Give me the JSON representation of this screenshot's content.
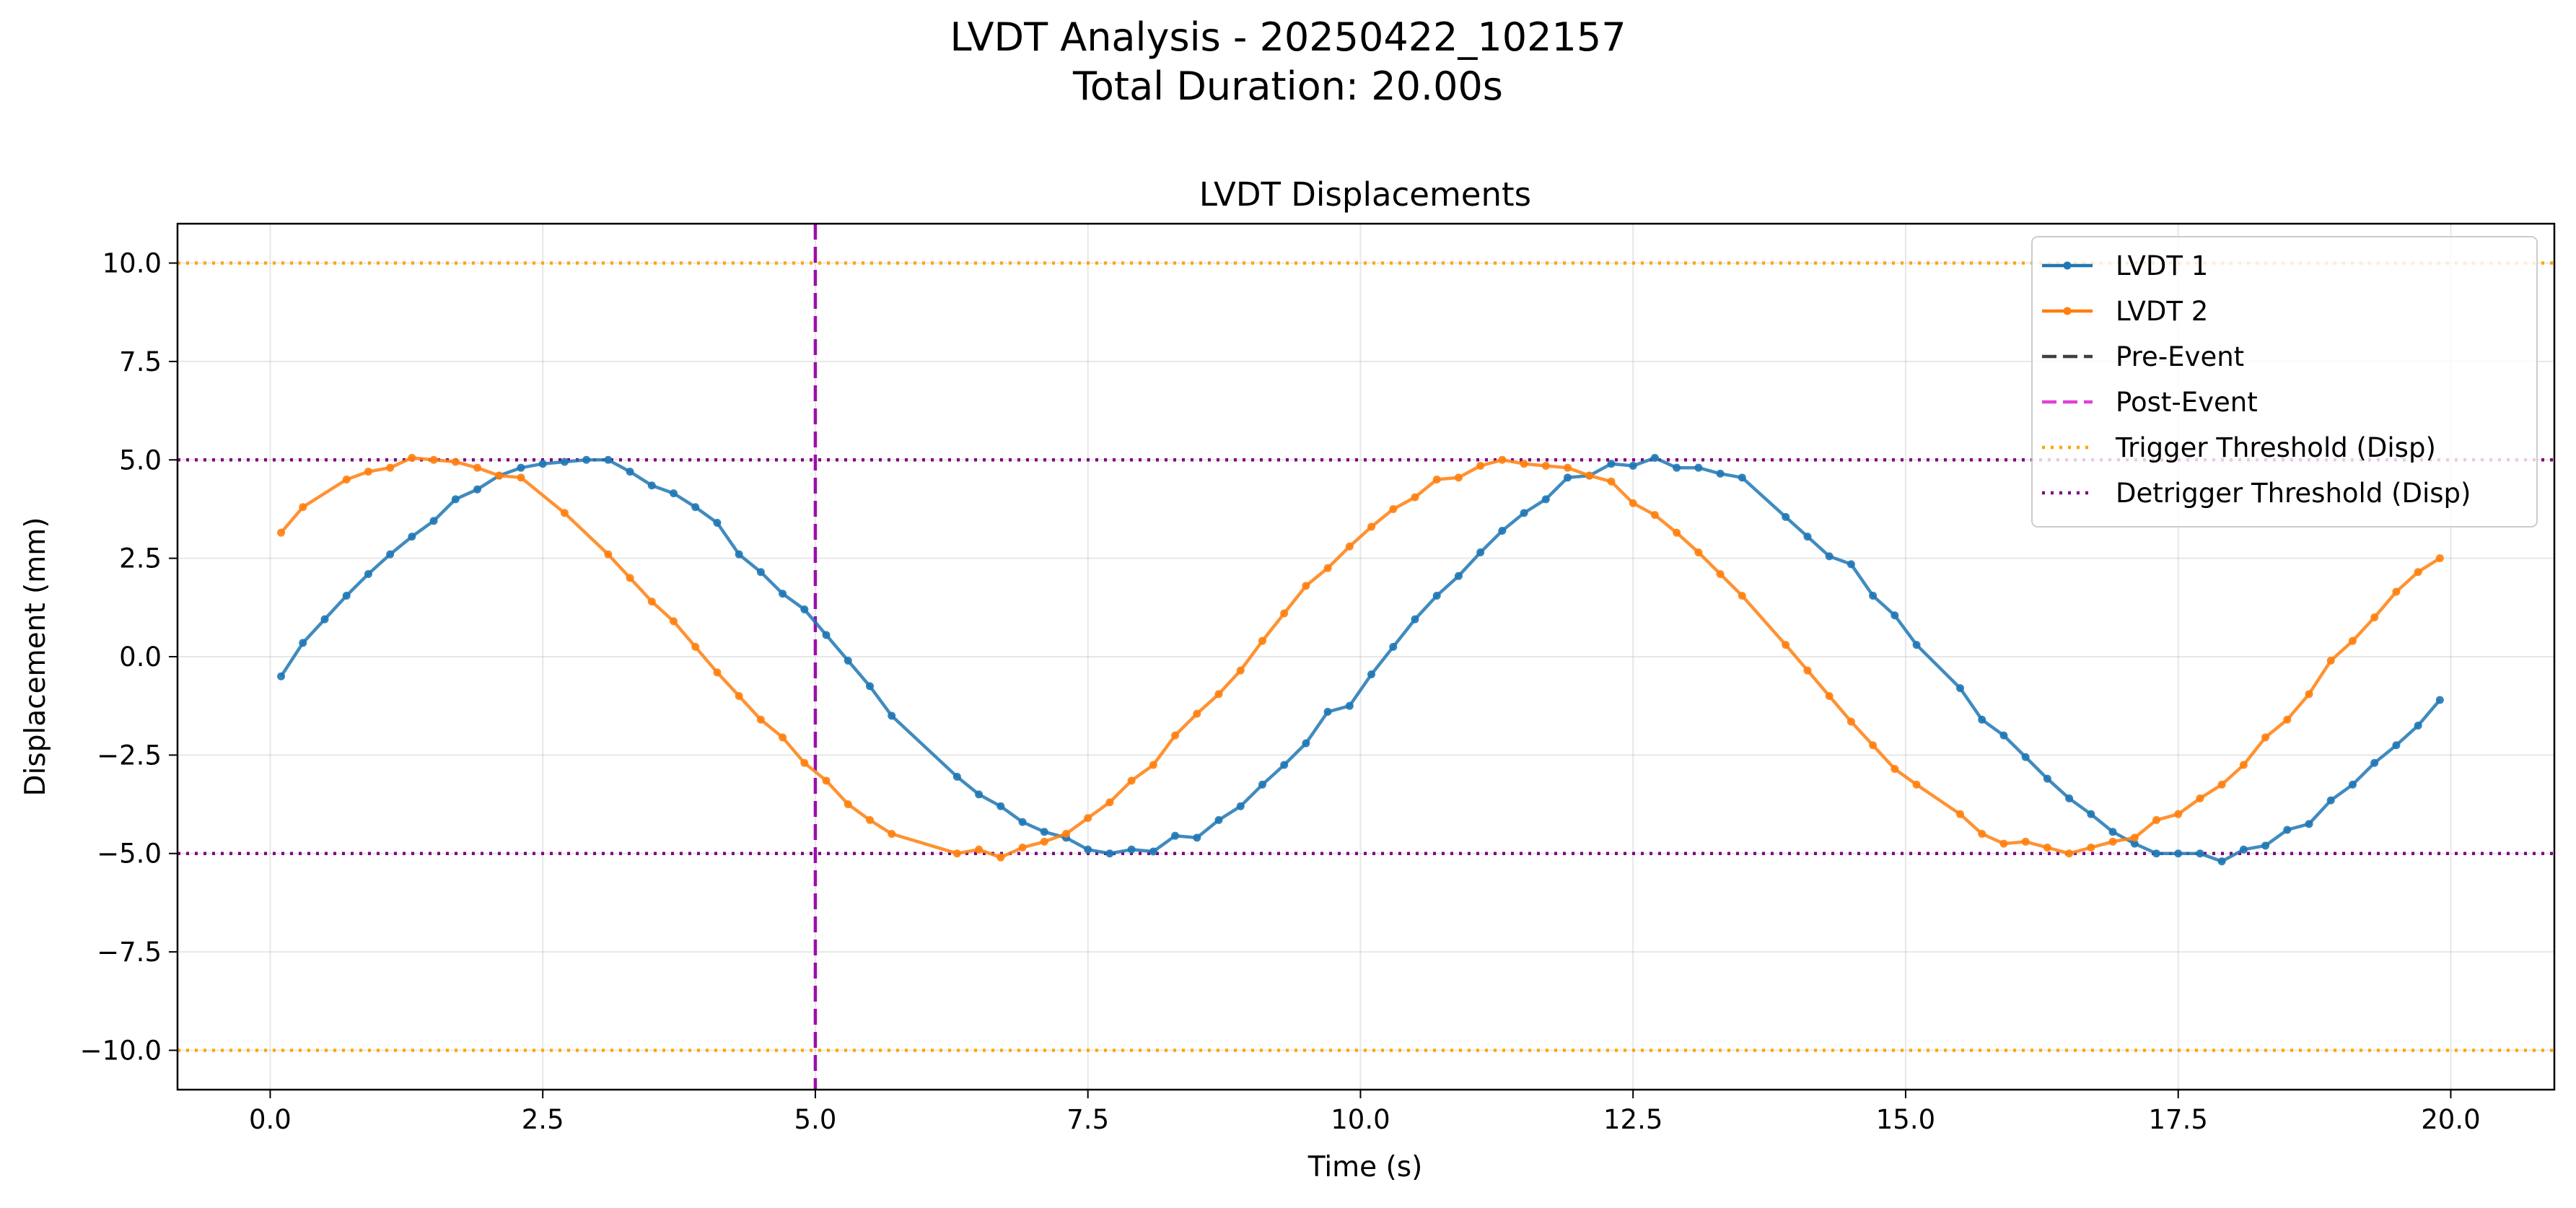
{
  "figure": {
    "suptitle_line1": "LVDT Analysis - 20250422_102157",
    "suptitle_line2": "Total Duration: 20.00s"
  },
  "chart_data": {
    "type": "line",
    "title": "LVDT Displacements",
    "xlabel": "Time (s)",
    "ylabel": "Displacement (mm)",
    "xlim": [
      -0.85,
      20.95
    ],
    "ylim": [
      -11,
      11
    ],
    "xticks": [
      0.0,
      2.5,
      5.0,
      7.5,
      10.0,
      12.5,
      15.0,
      17.5,
      20.0
    ],
    "xtick_labels": [
      "0.0",
      "2.5",
      "5.0",
      "7.5",
      "10.0",
      "12.5",
      "15.0",
      "17.5",
      "20.0"
    ],
    "yticks": [
      10.0,
      7.5,
      5.0,
      2.5,
      0.0,
      -2.5,
      -5.0,
      -7.5,
      -10.0
    ],
    "ytick_labels": [
      "10.0",
      "7.5",
      "5.0",
      "2.5",
      "0.0",
      "−2.5",
      "−5.0",
      "−7.5",
      "−10.0"
    ],
    "grid": true,
    "legend_position": "upper right",
    "series": [
      {
        "name": "LVDT 1",
        "color": "#1f77b4",
        "style": "solid-markers",
        "x": [
          0.1,
          0.3,
          0.5,
          0.7,
          0.9,
          1.1,
          1.3,
          1.5,
          1.7,
          1.9,
          2.1,
          2.3,
          2.5,
          2.7,
          2.9,
          3.1,
          3.3,
          3.5,
          3.7,
          3.9,
          4.1,
          4.3,
          4.5,
          4.7,
          4.9,
          5.1,
          5.3,
          5.5,
          5.7,
          6.3,
          6.5,
          6.7,
          6.9,
          7.1,
          7.3,
          7.5,
          7.7,
          7.9,
          8.1,
          8.3,
          8.5,
          8.7,
          8.9,
          9.1,
          9.3,
          9.5,
          9.7,
          9.9,
          10.1,
          10.3,
          10.5,
          10.7,
          10.9,
          11.1,
          11.3,
          11.5,
          11.7,
          11.9,
          12.1,
          12.3,
          12.5,
          12.7,
          12.9,
          13.1,
          13.3,
          13.5,
          13.9,
          14.1,
          14.3,
          14.5,
          14.7,
          14.9,
          15.1,
          15.5,
          15.7,
          15.9,
          16.1,
          16.3,
          16.5,
          16.7,
          16.9,
          17.1,
          17.3,
          17.5,
          17.7,
          17.9,
          18.1,
          18.3,
          18.5,
          18.7,
          18.9,
          19.1,
          19.3,
          19.5,
          19.7,
          19.9
        ],
        "y": [
          -0.5,
          0.35,
          0.95,
          1.55,
          2.1,
          2.6,
          3.05,
          3.45,
          4.0,
          4.25,
          4.6,
          4.8,
          4.9,
          4.95,
          5.0,
          5.0,
          4.7,
          4.35,
          4.15,
          3.8,
          3.4,
          2.6,
          2.15,
          1.6,
          1.2,
          0.55,
          -0.1,
          -0.75,
          -1.5,
          -3.05,
          -3.5,
          -3.8,
          -4.2,
          -4.45,
          -4.6,
          -4.9,
          -5.0,
          -4.9,
          -4.95,
          -4.55,
          -4.6,
          -4.15,
          -3.8,
          -3.25,
          -2.75,
          -2.2,
          -1.4,
          -1.25,
          -0.45,
          0.25,
          0.95,
          1.55,
          2.05,
          2.65,
          3.2,
          3.65,
          4.0,
          4.55,
          4.6,
          4.9,
          4.85,
          5.05,
          4.8,
          4.8,
          4.65,
          4.55,
          3.55,
          3.05,
          2.55,
          2.35,
          1.55,
          1.05,
          0.3,
          -0.8,
          -1.6,
          -2.0,
          -2.55,
          -3.1,
          -3.6,
          -4.0,
          -4.45,
          -4.75,
          -5.0,
          -5.0,
          -5.0,
          -5.2,
          -4.9,
          -4.8,
          -4.4,
          -4.25,
          -3.65,
          -3.25,
          -2.7,
          -2.25,
          -1.75,
          -1.1
        ]
      },
      {
        "name": "LVDT 2",
        "color": "#ff7f0e",
        "style": "solid-markers",
        "x": [
          0.1,
          0.3,
          0.7,
          0.9,
          1.1,
          1.3,
          1.5,
          1.7,
          1.9,
          2.1,
          2.3,
          2.7,
          3.1,
          3.3,
          3.5,
          3.7,
          3.9,
          4.1,
          4.3,
          4.5,
          4.7,
          4.9,
          5.1,
          5.3,
          5.5,
          5.7,
          6.3,
          6.5,
          6.7,
          6.9,
          7.1,
          7.3,
          7.5,
          7.7,
          7.9,
          8.1,
          8.3,
          8.5,
          8.7,
          8.9,
          9.1,
          9.3,
          9.5,
          9.7,
          9.9,
          10.1,
          10.3,
          10.5,
          10.7,
          10.9,
          11.1,
          11.3,
          11.5,
          11.7,
          11.9,
          12.1,
          12.3,
          12.5,
          12.7,
          12.9,
          13.1,
          13.3,
          13.5,
          13.9,
          14.1,
          14.3,
          14.5,
          14.7,
          14.9,
          15.1,
          15.5,
          15.7,
          15.9,
          16.1,
          16.3,
          16.5,
          16.7,
          16.9,
          17.1,
          17.3,
          17.5,
          17.7,
          17.9,
          18.1,
          18.3,
          18.5,
          18.7,
          18.9,
          19.1,
          19.3,
          19.5,
          19.7,
          19.9
        ],
        "y": [
          3.15,
          3.8,
          4.5,
          4.7,
          4.8,
          5.05,
          5.0,
          4.95,
          4.8,
          4.6,
          4.55,
          3.65,
          2.6,
          2.0,
          1.4,
          0.9,
          0.25,
          -0.4,
          -1.0,
          -1.6,
          -2.05,
          -2.7,
          -3.15,
          -3.75,
          -4.15,
          -4.5,
          -5.0,
          -4.9,
          -5.1,
          -4.85,
          -4.7,
          -4.5,
          -4.1,
          -3.7,
          -3.15,
          -2.75,
          -2.0,
          -1.45,
          -0.95,
          -0.35,
          0.4,
          1.1,
          1.8,
          2.25,
          2.8,
          3.3,
          3.75,
          4.05,
          4.5,
          4.55,
          4.85,
          5.0,
          4.9,
          4.85,
          4.8,
          4.6,
          4.45,
          3.9,
          3.6,
          3.15,
          2.65,
          2.1,
          1.55,
          0.3,
          -0.35,
          -1.0,
          -1.65,
          -2.25,
          -2.85,
          -3.25,
          -4.0,
          -4.5,
          -4.75,
          -4.7,
          -4.85,
          -5.0,
          -4.85,
          -4.7,
          -4.6,
          -4.15,
          -4.0,
          -3.6,
          -3.25,
          -2.75,
          -2.05,
          -1.6,
          -0.95,
          -0.1,
          0.4,
          1.0,
          1.65,
          2.15,
          2.5
        ]
      }
    ],
    "reference_lines": [
      {
        "orientation": "vertical",
        "x": 5.0,
        "color": "#9a0eab",
        "style": "dashed"
      },
      {
        "orientation": "horizontal",
        "y": 10.0,
        "color": "#ffa500",
        "style": "dotted",
        "name": "Trigger Threshold (Disp)"
      },
      {
        "orientation": "horizontal",
        "y": -10.0,
        "color": "#ffa500",
        "style": "dotted",
        "name": "Trigger Threshold (Disp)"
      },
      {
        "orientation": "horizontal",
        "y": 5.0,
        "color": "#800080",
        "style": "dotted",
        "name": "Detrigger Threshold (Disp)"
      },
      {
        "orientation": "horizontal",
        "y": -5.0,
        "color": "#800080",
        "style": "dotted",
        "name": "Detrigger Threshold (Disp)"
      }
    ],
    "legend": [
      {
        "label": "LVDT 1",
        "color": "#1f77b4",
        "style": "solid-marker"
      },
      {
        "label": "LVDT 2",
        "color": "#ff7f0e",
        "style": "solid-marker"
      },
      {
        "label": "Pre-Event",
        "color": "#404040",
        "style": "dashed"
      },
      {
        "label": "Post-Event",
        "color": "#e040d8",
        "style": "dashed"
      },
      {
        "label": "Trigger Threshold (Disp)",
        "color": "#ffa500",
        "style": "dotted"
      },
      {
        "label": "Detrigger Threshold (Disp)",
        "color": "#800080",
        "style": "dotted"
      }
    ]
  }
}
